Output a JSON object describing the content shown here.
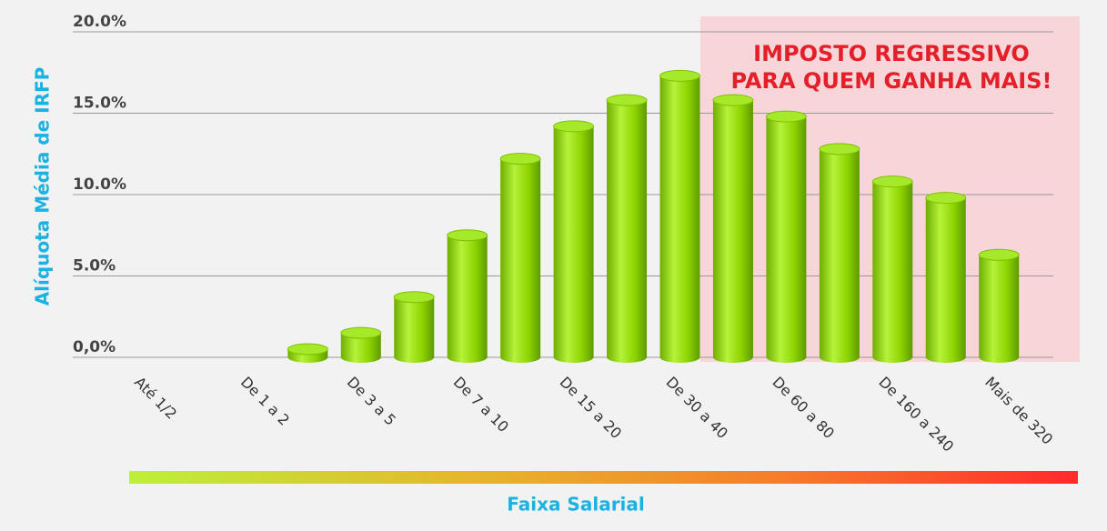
{
  "chart_data": {
    "type": "bar",
    "ylabel": "Alíquota Média de IRFP",
    "xlabel": "Faixa Salarial",
    "annotation": [
      "IMPOSTO REGRESSIVO",
      "PARA QUEM GANHA MAIS!"
    ],
    "categories": [
      "Até 1/2",
      null,
      "De 1 a 2",
      null,
      "De 3 a 5",
      null,
      "De 7 a 10",
      null,
      "De 15 a 20",
      null,
      "De 30 a 40",
      null,
      "De 60 a 80",
      null,
      "De 160 a 240",
      null,
      "Mais de 320"
    ],
    "values": [
      0,
      0,
      0,
      0.5,
      1.5,
      3.7,
      7.5,
      12.2,
      14.2,
      15.8,
      17.3,
      15.8,
      14.8,
      12.8,
      10.8,
      9.8,
      6.3
    ],
    "color": "#8ed400",
    "ylim": [
      0,
      20
    ],
    "yticks": [
      {
        "value": 0,
        "label": "0,0%"
      },
      {
        "value": 5,
        "label": "5.0%"
      },
      {
        "value": 10,
        "label": "10.0%"
      },
      {
        "value": 15,
        "label": "15.0%"
      },
      {
        "value": 20,
        "label": "20.0%"
      }
    ],
    "grid": true
  }
}
